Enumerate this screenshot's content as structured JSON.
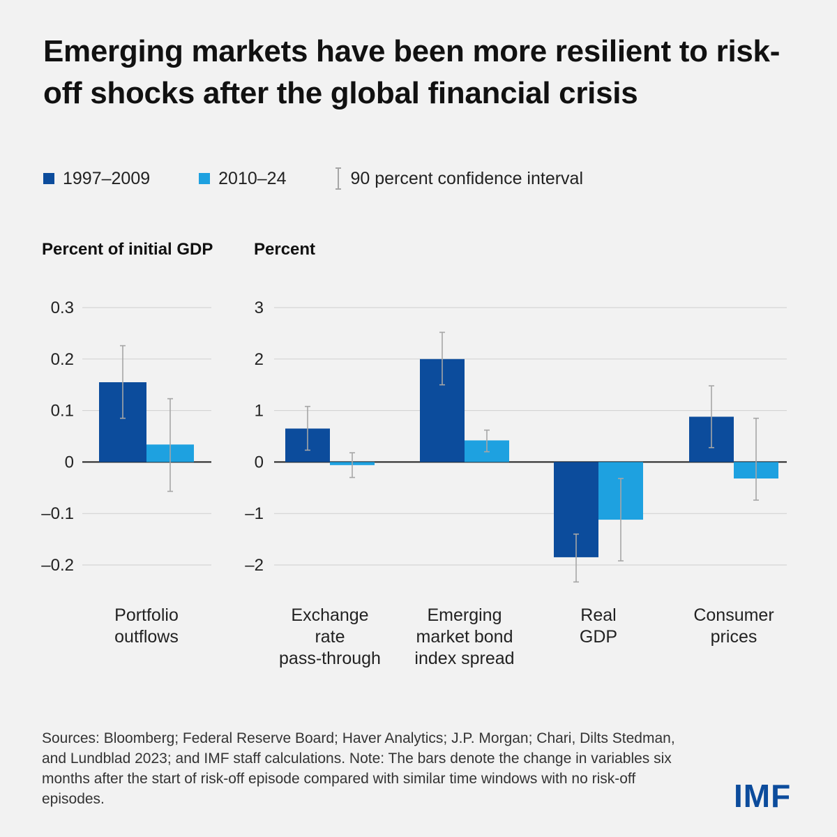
{
  "title": "Emerging markets have been more resilient to risk-off shocks after the global financial crisis",
  "legend": {
    "series1": "1997–2009",
    "series2": "2010–24",
    "ci": "90 percent confidence interval"
  },
  "colors": {
    "series1": "#0c4c9c",
    "series2": "#1ea1e0",
    "ci": "#a6a6a6",
    "grid": "#cfcfcf",
    "axis": "#222222"
  },
  "chart_data": [
    {
      "type": "bar",
      "ylabel": "Percent of initial GDP",
      "ylim": [
        -0.2,
        0.3
      ],
      "ticks": [
        0.3,
        0.2,
        0.1,
        0,
        -0.1,
        -0.2
      ],
      "tick_labels": [
        "0.3",
        "0.2",
        "0.1",
        "0",
        "–0.1",
        "–0.2"
      ],
      "categories": [
        [
          "Portfolio",
          "outflows"
        ]
      ],
      "series": [
        {
          "name": "1997–2009",
          "values": [
            0.155
          ],
          "ci": [
            [
              0.085,
              0.226
            ]
          ]
        },
        {
          "name": "2010–24",
          "values": [
            0.034
          ],
          "ci": [
            [
              -0.057,
              0.123
            ]
          ]
        }
      ]
    },
    {
      "type": "bar",
      "ylabel": "Percent",
      "ylim": [
        -2,
        3
      ],
      "ticks": [
        3,
        2,
        1,
        0,
        -1,
        -2
      ],
      "tick_labels": [
        "3",
        "2",
        "1",
        "0",
        "–1",
        "–2"
      ],
      "categories": [
        [
          "Exchange",
          "rate",
          "pass-through"
        ],
        [
          "Emerging",
          "market bond",
          "index spread"
        ],
        [
          "Real",
          "GDP"
        ],
        [
          "Consumer",
          "prices"
        ]
      ],
      "series": [
        {
          "name": "1997–2009",
          "values": [
            0.65,
            2.0,
            -1.85,
            0.88
          ],
          "ci": [
            [
              0.23,
              1.08
            ],
            [
              1.5,
              2.52
            ],
            [
              -2.33,
              -1.4
            ],
            [
              0.28,
              1.48
            ]
          ]
        },
        {
          "name": "2010–24",
          "values": [
            -0.06,
            0.42,
            -1.12,
            -0.32
          ],
          "ci": [
            [
              -0.3,
              0.18
            ],
            [
              0.2,
              0.62
            ],
            [
              -1.92,
              -0.32
            ],
            [
              -0.74,
              0.85
            ]
          ]
        }
      ]
    }
  ],
  "footnote": "Sources: Bloomberg; Federal Reserve Board; Haver Analytics; J.P. Morgan; Chari, Dilts Stedman, and Lundblad 2023; and IMF staff calculations. Note: The bars denote the change in variables six months after the start of risk-off episode compared with similar time windows with no risk-off episodes.",
  "logo": "IMF"
}
